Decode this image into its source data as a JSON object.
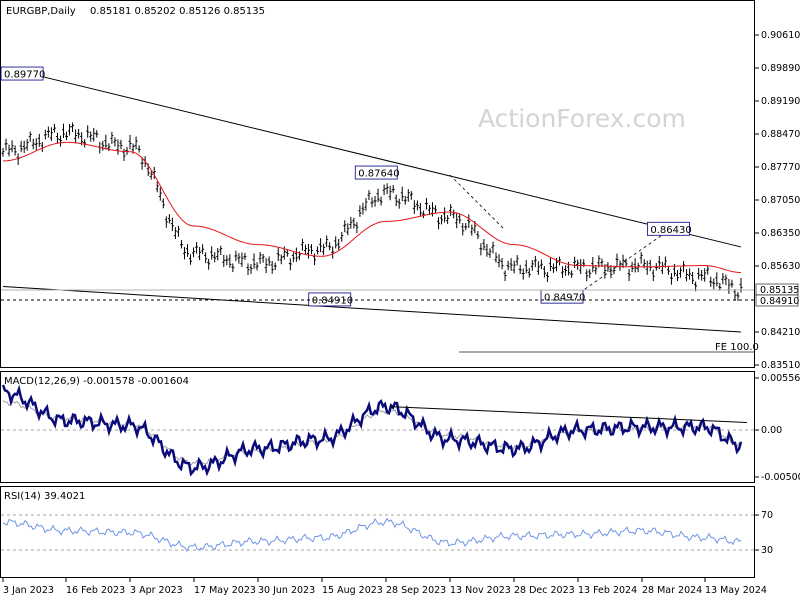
{
  "header": {
    "symbol": "EURGBP,Daily",
    "ohlc": "0.85181 0.85202 0.85126 0.85135"
  },
  "watermark": "ActionForex.com",
  "colors": {
    "price": "#000000",
    "ma": "#e8141a",
    "trend": "#000000",
    "dashed": "#000000",
    "macd": "#0a0a7a",
    "signal": "#a0a0a0",
    "rsi": "#6f96e6",
    "fe_line": "#555555",
    "panel_border": "#000000",
    "label_bg": "#ffffff",
    "label_border": "#000080"
  },
  "price_axis": {
    "ticks": [
      "0.90610",
      "0.89890",
      "0.89190",
      "0.88470",
      "0.87770",
      "0.87050",
      "0.86350",
      "0.85630",
      "0.84210",
      "0.83510"
    ],
    "last_price": "0.85135",
    "support": "0.84910"
  },
  "annotations": [
    "0.89770",
    "0.87640",
    "0.86430",
    "0.84970",
    "0.84910"
  ],
  "fe_label": "FE 100.0",
  "macd_panel": {
    "title": "MACD(12,26,9) -0.001578 -0.001604",
    "ticks": [
      "0.005561",
      "0.00",
      "-0.005007"
    ]
  },
  "rsi_panel": {
    "title": "RSI(14) 39.4021",
    "ticks": [
      "70",
      "30"
    ]
  },
  "x_axis": {
    "labels": [
      "3 Jan 2023",
      "16 Feb 2023",
      "3 Apr 2023",
      "17 May 2023",
      "30 Jun 2023",
      "15 Aug 2023",
      "28 Sep 2023",
      "13 Nov 2023",
      "28 Dec 2023",
      "13 Feb 2024",
      "28 Mar 2024",
      "13 May 2024"
    ]
  },
  "chart_data": {
    "type": "line",
    "title": "EURGBP,Daily",
    "x": [
      "3 Jan 2023",
      "16 Feb 2023",
      "3 Apr 2023",
      "17 May 2023",
      "30 Jun 2023",
      "15 Aug 2023",
      "28 Sep 2023",
      "13 Nov 2023",
      "28 Dec 2023",
      "13 Feb 2024",
      "28 Mar 2024",
      "13 May 2024",
      "29 May 2024"
    ],
    "ylim": [
      0.832,
      0.91
    ],
    "series": [
      {
        "values": [
          0.881,
          0.885,
          0.882,
          0.859,
          0.857,
          0.86,
          0.872,
          0.867,
          0.856,
          0.856,
          0.8565,
          0.854,
          0.8514
        ]
      },
      {
        "values": [
          0.879,
          0.883,
          0.881,
          0.865,
          0.861,
          0.8585,
          0.866,
          0.868,
          0.861,
          0.8565,
          0.8562,
          0.8565,
          0.855
        ]
      },
      {
        "values": [
          0.004,
          0.001,
          0.0005,
          -0.004,
          -0.002,
          -0.001,
          0.0025,
          -0.001,
          -0.002,
          0.0,
          0.0003,
          0.0003,
          -0.0016
        ]
      },
      {
        "values": [
          0.003,
          0.0012,
          0.0006,
          -0.0035,
          -0.0022,
          -0.0012,
          0.002,
          -0.0006,
          -0.0018,
          -0.0001,
          0.0002,
          0.0004,
          -0.0016
        ]
      },
      {
        "values": [
          62,
          52,
          50,
          33,
          40,
          44,
          62,
          38,
          46,
          48,
          52,
          44,
          39.4
        ]
      }
    ],
    "annotations": [
      {
        "label": "0.89770",
        "x": "17 Jan 2023",
        "y": 0.8977
      },
      {
        "label": "0.87640",
        "x": "22 Sep 2023",
        "y": 0.8764
      },
      {
        "label": "0.86430",
        "x": "17 Apr 2024",
        "y": 0.8643
      },
      {
        "label": "0.84910",
        "x": "21 Aug 2023",
        "y": 0.8491
      },
      {
        "label": "0.84970",
        "x": "2 Feb 2024",
        "y": 0.8497
      }
    ],
    "horizontal_lines": [
      {
        "label": "0.84910",
        "y": 0.8491,
        "style": "dashed"
      },
      {
        "label": "FE 100.0",
        "y": 0.8375,
        "style": "solid"
      }
    ],
    "trendlines": [
      {
        "from": {
          "x": "3 Jan 2023",
          "y": 0.8992
        },
        "to": {
          "x": "29 May 2024",
          "y": 0.8605
        }
      },
      {
        "from": {
          "x": "3 Jan 2023",
          "y": 0.852
        },
        "to": {
          "x": "29 May 2024",
          "y": 0.8422
        }
      }
    ],
    "grid": false
  }
}
